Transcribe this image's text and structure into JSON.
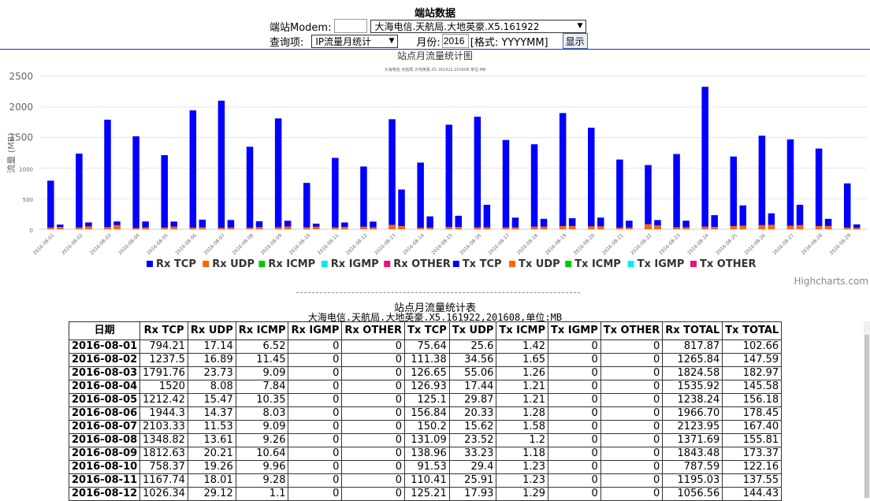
{
  "header": {
    "title": "端站数据",
    "modem_label": "端站Modem:",
    "modem_value": "",
    "station_select": "大海电信.天航局.大地英豪.X5.161922",
    "query_label": "查询项:",
    "query_select": "IP流量月统计",
    "month_label": "月份:",
    "month_value": "2016",
    "format_hint": "[格式: YYYYMM]",
    "show_button": "显示"
  },
  "chart_data": {
    "type": "bar",
    "title": "站点月流量统计图",
    "subtitle": "大海电信.天航局.大地英豪.X5.161922,201608,单位:MB",
    "ylabel": "流量 (MB)",
    "ylim": [
      0,
      2500
    ],
    "yticks": [
      "0",
      "500",
      "1000",
      "1500",
      "2000",
      "2500"
    ],
    "categories": [
      "2016-08-01",
      "2016-08-02",
      "2016-08-03",
      "2016-08-04",
      "2016-08-05",
      "2016-08-06",
      "2016-08-07",
      "2016-08-08",
      "2016-08-09",
      "2016-08-10",
      "2016-08-11",
      "2016-08-12",
      "2016-08-13",
      "2016-08-14",
      "2016-08-15",
      "2016-08-16",
      "2016-08-17",
      "2016-08-18",
      "2016-08-19",
      "2016-08-20",
      "2016-08-21",
      "2016-08-22",
      "2016-08-23",
      "2016-08-24",
      "2016-08-25",
      "2016-08-26",
      "2016-08-27",
      "2016-08-28",
      "2016-08-29"
    ],
    "series": [
      {
        "name": "Rx TCP",
        "color": "#0000ff",
        "group": "rx",
        "values": [
          794.21,
          1237.5,
          1791.76,
          1520,
          1212.42,
          1944.3,
          2103.33,
          1348.82,
          1812.63,
          758.37,
          1167.74,
          1026.34,
          1800,
          1090,
          1710,
          1840,
          1460,
          1390,
          1900,
          1660,
          1140,
          1050,
          1230,
          2330,
          1190,
          1530,
          1470,
          1320,
          750
        ]
      },
      {
        "name": "Rx UDP",
        "color": "#ff6600",
        "group": "rx",
        "values": [
          17.14,
          16.89,
          23.73,
          8.08,
          15.47,
          14.37,
          11.53,
          13.61,
          20.21,
          19.26,
          18.01,
          29.12,
          60,
          12,
          25,
          20,
          18,
          30,
          40,
          35,
          15,
          70,
          20,
          30,
          40,
          55,
          45,
          40,
          15
        ]
      },
      {
        "name": "Rx ICMP",
        "color": "#00cc00",
        "group": "rx",
        "values": [
          6.52,
          11.45,
          9.09,
          7.84,
          10.35,
          8.03,
          9.09,
          9.26,
          10.64,
          9.96,
          9.28,
          1.1,
          9,
          8,
          9,
          9,
          9,
          9,
          9,
          9,
          9,
          9,
          9,
          9,
          9,
          9,
          9,
          9,
          9
        ]
      },
      {
        "name": "Rx IGMP",
        "color": "#00eeee",
        "group": "rx",
        "values": [
          0,
          0,
          0,
          0,
          0,
          0,
          0,
          0,
          0,
          0,
          0,
          0,
          0,
          0,
          0,
          0,
          0,
          0,
          0,
          0,
          0,
          0,
          0,
          0,
          0,
          0,
          0,
          0,
          0
        ]
      },
      {
        "name": "Rx OTHER",
        "color": "#ee1177",
        "group": "rx",
        "values": [
          0,
          0,
          0,
          0,
          0,
          0,
          0,
          0,
          0,
          0,
          0,
          0,
          0,
          0,
          0,
          0,
          0,
          0,
          0,
          0,
          0,
          0,
          0,
          0,
          0,
          0,
          0,
          0,
          0
        ]
      },
      {
        "name": "Tx TCP",
        "color": "#0000ff",
        "group": "tx",
        "values": [
          75.64,
          111.38,
          126.65,
          126.93,
          125.1,
          156.84,
          150.2,
          131.09,
          138.96,
          91.53,
          110.41,
          125.21,
          650,
          210,
          220,
          400,
          190,
          170,
          180,
          190,
          140,
          150,
          140,
          230,
          390,
          260,
          400,
          170,
          80
        ]
      },
      {
        "name": "Tx UDP",
        "color": "#ff6600",
        "group": "tx",
        "values": [
          25.6,
          34.56,
          55.06,
          17.44,
          29.87,
          20.33,
          15.62,
          23.52,
          33.23,
          29.4,
          25.91,
          17.93,
          40,
          15,
          25,
          20,
          18,
          30,
          40,
          35,
          15,
          50,
          20,
          25,
          45,
          60,
          55,
          40,
          10
        ]
      },
      {
        "name": "Tx ICMP",
        "color": "#00cc00",
        "group": "tx",
        "values": [
          1.42,
          1.65,
          1.26,
          1.21,
          1.21,
          1.28,
          1.58,
          1.2,
          1.18,
          1.23,
          1.23,
          1.29,
          1.2,
          1.2,
          1.2,
          1.2,
          1.2,
          1.2,
          1.2,
          1.2,
          1.2,
          1.2,
          1.2,
          1.2,
          1.2,
          1.2,
          1.2,
          1.2,
          1.2
        ]
      },
      {
        "name": "Tx IGMP",
        "color": "#00eeee",
        "group": "tx",
        "values": [
          0,
          0,
          0,
          0,
          0,
          0,
          0,
          0,
          0,
          0,
          0,
          0,
          0,
          0,
          0,
          0,
          0,
          0,
          0,
          0,
          0,
          0,
          0,
          0,
          0,
          0,
          0,
          0,
          0
        ]
      },
      {
        "name": "Tx OTHER",
        "color": "#ee1177",
        "group": "tx",
        "values": [
          0,
          0,
          0,
          0,
          0,
          0,
          0,
          0,
          0,
          0,
          0,
          0,
          0,
          0,
          0,
          0,
          0,
          0,
          0,
          0,
          0,
          0,
          0,
          0,
          0,
          0,
          0,
          0,
          0
        ]
      }
    ],
    "legend_position": "bottom",
    "credits": "Highcharts.com"
  },
  "table": {
    "title": "站点月流量统计表",
    "subtitle": "大海电信.天航局.大地英豪.X5.161922,201608,单位:MB",
    "columns": [
      "日期",
      "Rx TCP",
      "Rx UDP",
      "Rx ICMP",
      "Rx IGMP",
      "Rx OTHER",
      "Tx TCP",
      "Tx UDP",
      "Tx ICMP",
      "Tx IGMP",
      "Tx OTHER",
      "Rx TOTAL",
      "Tx TOTAL"
    ],
    "rows": [
      [
        "2016-08-01",
        "794.21",
        "17.14",
        "6.52",
        "0",
        "0",
        "75.64",
        "25.6",
        "1.42",
        "0",
        "0",
        "817.87",
        "102.66"
      ],
      [
        "2016-08-02",
        "1237.5",
        "16.89",
        "11.45",
        "0",
        "0",
        "111.38",
        "34.56",
        "1.65",
        "0",
        "0",
        "1265.84",
        "147.59"
      ],
      [
        "2016-08-03",
        "1791.76",
        "23.73",
        "9.09",
        "0",
        "0",
        "126.65",
        "55.06",
        "1.26",
        "0",
        "0",
        "1824.58",
        "182.97"
      ],
      [
        "2016-08-04",
        "1520",
        "8.08",
        "7.84",
        "0",
        "0",
        "126.93",
        "17.44",
        "1.21",
        "0",
        "0",
        "1535.92",
        "145.58"
      ],
      [
        "2016-08-05",
        "1212.42",
        "15.47",
        "10.35",
        "0",
        "0",
        "125.1",
        "29.87",
        "1.21",
        "0",
        "0",
        "1238.24",
        "156.18"
      ],
      [
        "2016-08-06",
        "1944.3",
        "14.37",
        "8.03",
        "0",
        "0",
        "156.84",
        "20.33",
        "1.28",
        "0",
        "0",
        "1966.70",
        "178.45"
      ],
      [
        "2016-08-07",
        "2103.33",
        "11.53",
        "9.09",
        "0",
        "0",
        "150.2",
        "15.62",
        "1.58",
        "0",
        "0",
        "2123.95",
        "167.40"
      ],
      [
        "2016-08-08",
        "1348.82",
        "13.61",
        "9.26",
        "0",
        "0",
        "131.09",
        "23.52",
        "1.2",
        "0",
        "0",
        "1371.69",
        "155.81"
      ],
      [
        "2016-08-09",
        "1812.63",
        "20.21",
        "10.64",
        "0",
        "0",
        "138.96",
        "33.23",
        "1.18",
        "0",
        "0",
        "1843.48",
        "173.37"
      ],
      [
        "2016-08-10",
        "758.37",
        "19.26",
        "9.96",
        "0",
        "0",
        "91.53",
        "29.4",
        "1.23",
        "0",
        "0",
        "787.59",
        "122.16"
      ],
      [
        "2016-08-11",
        "1167.74",
        "18.01",
        "9.28",
        "0",
        "0",
        "110.41",
        "25.91",
        "1.23",
        "0",
        "0",
        "1195.03",
        "137.55"
      ],
      [
        "2016-08-12",
        "1026.34",
        "29.12",
        "1.1",
        "0",
        "0",
        "125.21",
        "17.93",
        "1.29",
        "0",
        "0",
        "1056.56",
        "144.43"
      ]
    ]
  }
}
